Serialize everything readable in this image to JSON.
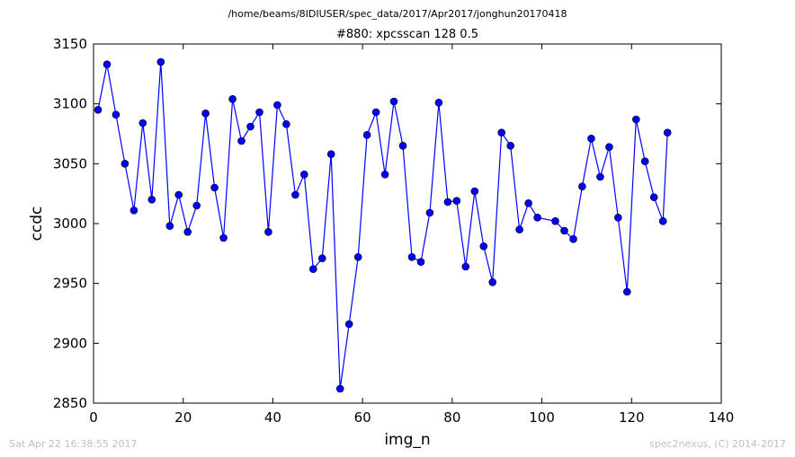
{
  "header": {
    "path": "/home/beams/8IDIUSER/spec_data/2017/Apr2017/jonghun20170418"
  },
  "footer": {
    "timestamp": "Sat Apr 22 16:38:55 2017",
    "credit": "spec2nexus, (C) 2014-2017"
  },
  "chart_data": {
    "type": "line",
    "title": "#880: xpcsscan 128 0.5",
    "xlabel": "img_n",
    "ylabel": "ccdc",
    "xlim": [
      0,
      140
    ],
    "ylim": [
      2850,
      3150
    ],
    "xticks": [
      0,
      20,
      40,
      60,
      80,
      100,
      120,
      140
    ],
    "yticks": [
      2850,
      2900,
      2950,
      3000,
      3050,
      3100,
      3150
    ],
    "grid": false,
    "line_color": "#0000ff",
    "marker": "circle",
    "series": [
      {
        "x": [
          1,
          3,
          5,
          7,
          9,
          11,
          13,
          15,
          17,
          19,
          21,
          23,
          25,
          27,
          29,
          31,
          33,
          35,
          37,
          39,
          41,
          43,
          45,
          47,
          49,
          51,
          53,
          55,
          57,
          59,
          61,
          63,
          65,
          67,
          69,
          71,
          73,
          75,
          77,
          79,
          81,
          83,
          85,
          87,
          89,
          91,
          93,
          95,
          97,
          99,
          103,
          105,
          107,
          109,
          111,
          113,
          115,
          117,
          119,
          121,
          123,
          125,
          127,
          128
        ],
        "y": [
          3095,
          3133,
          3091,
          3050,
          3011,
          3084,
          3020,
          3135,
          2998,
          3024,
          2993,
          3015,
          3092,
          3030,
          2988,
          3104,
          3069,
          3081,
          3093,
          2993,
          3099,
          3083,
          3024,
          3041,
          2962,
          2971,
          3058,
          2862,
          2916,
          2972,
          3074,
          3093,
          3041,
          3102,
          3065,
          2972,
          2968,
          3009,
          3101,
          3018,
          3019,
          2964,
          3027,
          2981,
          2951,
          3076,
          3065,
          2995,
          3017,
          3005,
          3002,
          2994,
          2987,
          3031,
          3071,
          3039,
          3064,
          3005,
          2943,
          3087,
          3052,
          3022,
          3002,
          3076
        ]
      }
    ]
  }
}
